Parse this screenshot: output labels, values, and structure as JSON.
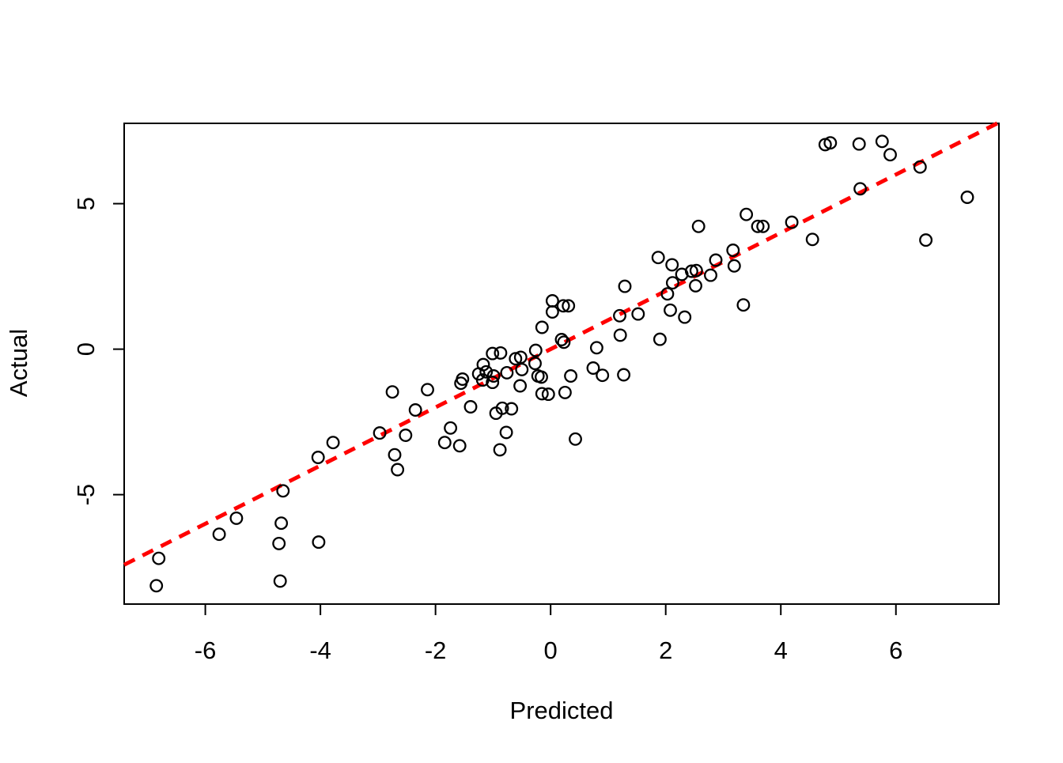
{
  "chart_data": {
    "type": "scatter",
    "title": "",
    "xlabel": "Predicted",
    "ylabel": "Actual",
    "x_ticks": [
      -6,
      -4,
      -2,
      0,
      2,
      4,
      6
    ],
    "y_ticks": [
      -5,
      0,
      5
    ],
    "xlim": [
      -7.41,
      7.79
    ],
    "ylim": [
      -8.76,
      7.76
    ],
    "grid": false,
    "legend": "none",
    "point_style": "open-circle",
    "point_color": "#000000",
    "reference_line": {
      "name": "identity-line",
      "slope": 1,
      "intercept": 0,
      "color": "#FF0000",
      "style": "dashed"
    },
    "points": [
      [
        -6.81,
        -7.19
      ],
      [
        -6.85,
        -8.13
      ],
      [
        -5.76,
        -6.36
      ],
      [
        -5.46,
        -5.81
      ],
      [
        -4.65,
        -4.87
      ],
      [
        -4.68,
        -5.98
      ],
      [
        -4.72,
        -6.68
      ],
      [
        -4.7,
        -7.97
      ],
      [
        -4.03,
        -6.63
      ],
      [
        -4.04,
        -3.72
      ],
      [
        -3.78,
        -3.21
      ],
      [
        -2.97,
        -2.88
      ],
      [
        -2.75,
        -1.47
      ],
      [
        -2.71,
        -3.63
      ],
      [
        -2.66,
        -4.14
      ],
      [
        -2.52,
        -2.96
      ],
      [
        -2.35,
        -2.09
      ],
      [
        -2.14,
        -1.39
      ],
      [
        -1.84,
        -3.21
      ],
      [
        -1.74,
        -2.71
      ],
      [
        -1.58,
        -3.32
      ],
      [
        -1.39,
        -1.98
      ],
      [
        -1.56,
        -1.17
      ],
      [
        -1.53,
        -1.03
      ],
      [
        -1.25,
        -0.85
      ],
      [
        -1.17,
        -0.53
      ],
      [
        -1.12,
        -0.78
      ],
      [
        -1.18,
        -1.06
      ],
      [
        -1.01,
        -1.14
      ],
      [
        -0.99,
        -0.92
      ],
      [
        -1.01,
        -0.15
      ],
      [
        -0.87,
        -0.13
      ],
      [
        -0.95,
        -2.2
      ],
      [
        -0.84,
        -2.03
      ],
      [
        -0.68,
        -2.05
      ],
      [
        -0.77,
        -2.86
      ],
      [
        -0.88,
        -3.46
      ],
      [
        -0.76,
        -0.81
      ],
      [
        -0.61,
        -0.33
      ],
      [
        -0.52,
        -0.28
      ],
      [
        -0.5,
        -0.7
      ],
      [
        -0.53,
        -1.26
      ],
      [
        -0.26,
        -0.04
      ],
      [
        -0.27,
        -0.49
      ],
      [
        -0.22,
        -0.92
      ],
      [
        -0.16,
        -0.96
      ],
      [
        -0.15,
        -1.53
      ],
      [
        -0.04,
        -1.55
      ],
      [
        -0.15,
        0.75
      ],
      [
        0.03,
        1.66
      ],
      [
        0.03,
        1.28
      ],
      [
        0.22,
        1.49
      ],
      [
        0.31,
        1.49
      ],
      [
        0.19,
        0.33
      ],
      [
        0.23,
        0.24
      ],
      [
        0.25,
        -1.49
      ],
      [
        0.35,
        -0.92
      ],
      [
        0.43,
        -3.09
      ],
      [
        0.74,
        -0.65
      ],
      [
        0.8,
        0.05
      ],
      [
        0.9,
        -0.9
      ],
      [
        1.27,
        -0.88
      ],
      [
        1.29,
        2.16
      ],
      [
        1.2,
        1.15
      ],
      [
        1.21,
        0.48
      ],
      [
        1.52,
        1.21
      ],
      [
        1.87,
        3.15
      ],
      [
        1.9,
        0.34
      ],
      [
        2.03,
        1.9
      ],
      [
        2.08,
        1.34
      ],
      [
        2.33,
        1.1
      ],
      [
        2.11,
        2.9
      ],
      [
        2.12,
        2.28
      ],
      [
        2.28,
        2.57
      ],
      [
        2.45,
        2.68
      ],
      [
        2.53,
        2.7
      ],
      [
        2.52,
        2.18
      ],
      [
        2.78,
        2.54
      ],
      [
        2.87,
        3.06
      ],
      [
        3.17,
        3.4
      ],
      [
        3.19,
        2.86
      ],
      [
        2.57,
        4.22
      ],
      [
        3.4,
        4.63
      ],
      [
        3.6,
        4.22
      ],
      [
        3.69,
        4.22
      ],
      [
        3.35,
        1.52
      ],
      [
        4.19,
        4.36
      ],
      [
        4.55,
        3.77
      ],
      [
        4.77,
        7.03
      ],
      [
        4.86,
        7.09
      ],
      [
        5.36,
        7.05
      ],
      [
        5.76,
        7.14
      ],
      [
        5.9,
        6.68
      ],
      [
        6.42,
        6.26
      ],
      [
        5.38,
        5.51
      ],
      [
        6.52,
        3.75
      ],
      [
        7.24,
        5.22
      ]
    ]
  }
}
